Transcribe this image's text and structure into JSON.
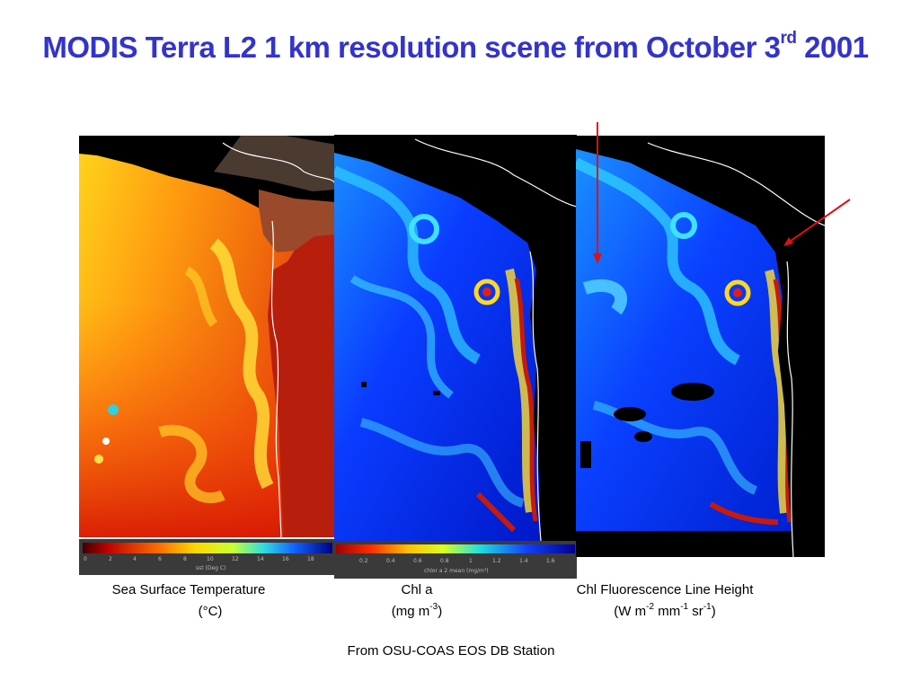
{
  "slide": {
    "title_main": "MODIS Terra  L2  1 km resolution scene from October 3",
    "title_sup": "rd",
    "title_tail": " 2001",
    "source": "From OSU-COAS EOS DB Station"
  },
  "panels": [
    {
      "caption_line1": "Sea Surface Temperature",
      "caption_line2": "(°C)",
      "colorbar_ticks": [
        "0",
        "2",
        "4",
        "6",
        "8",
        "10",
        "12",
        "14",
        "16",
        "18"
      ],
      "colorbar_label": "sst (Deg C)"
    },
    {
      "caption_line1": "Chl a",
      "caption_line2_pre": "(mg m",
      "caption_line2_sup": "-3",
      "caption_line2_post": ")",
      "colorbar_ticks": [
        "0.2",
        "0.4",
        "0.6",
        "0.8",
        "1",
        "1.2",
        "1.4",
        "1.6"
      ],
      "colorbar_label": "chlor a 2 mean (mg/m³)"
    },
    {
      "caption_line1": "Chl Fluorescence Line Height",
      "caption_line2_pre": "(W m",
      "caption_line2_sup1": "-2",
      "caption_line2_mid1": " mm",
      "caption_line2_sup2": "-1",
      "caption_line2_mid2": " sr",
      "caption_line2_sup3": "-1",
      "caption_line2_post": ")"
    }
  ],
  "colors": {
    "title": "#3333cc",
    "arrow": "#e01010"
  },
  "icons": [
    "arrow-down-icon",
    "arrow-diagonal-icon"
  ]
}
